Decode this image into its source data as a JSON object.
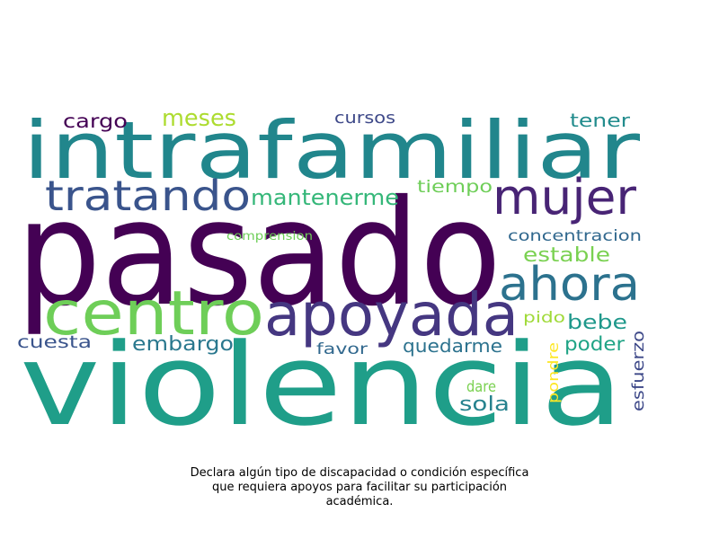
{
  "wordcloud": {
    "words": [
      {
        "text": "pasado",
        "color": "#440154"
      },
      {
        "text": "violencia",
        "color": "#1f9e89"
      },
      {
        "text": "intrafamiliar",
        "color": "#21868c"
      },
      {
        "text": "centro",
        "color": "#6ece58"
      },
      {
        "text": "apoyada",
        "color": "#453781"
      },
      {
        "text": "mujer",
        "color": "#482475"
      },
      {
        "text": "tratando",
        "color": "#3a548c"
      },
      {
        "text": "ahora",
        "color": "#2c728e"
      },
      {
        "text": "mantenerme",
        "color": "#35b779"
      },
      {
        "text": "meses",
        "color": "#addc30"
      },
      {
        "text": "cargo",
        "color": "#440154"
      },
      {
        "text": "cursos",
        "color": "#3e4989"
      },
      {
        "text": "tener",
        "color": "#228c8d"
      },
      {
        "text": "tiempo",
        "color": "#6ece58"
      },
      {
        "text": "comprension",
        "color": "#6ece58"
      },
      {
        "text": "concentracion",
        "color": "#31688e"
      },
      {
        "text": "estable",
        "color": "#7ad151"
      },
      {
        "text": "pido",
        "color": "#a0da39"
      },
      {
        "text": "bebe",
        "color": "#1f988b"
      },
      {
        "text": "poder",
        "color": "#20a486"
      },
      {
        "text": "cuesta",
        "color": "#3a548c"
      },
      {
        "text": "embargo",
        "color": "#2a788e"
      },
      {
        "text": "favor",
        "color": "#31688e"
      },
      {
        "text": "quedarme",
        "color": "#2c728e"
      },
      {
        "text": "dare",
        "color": "#7ad151"
      },
      {
        "text": "sola",
        "color": "#26828e"
      },
      {
        "text": "pondre",
        "color": "#fde725"
      },
      {
        "text": "esfuerzo",
        "color": "#3e4989"
      }
    ]
  },
  "caption": {
    "line1": "Declara algún tipo de discapacidad o condición específica",
    "line2": "que requiera apoyos para facilitar su participación",
    "line3": "académica."
  }
}
